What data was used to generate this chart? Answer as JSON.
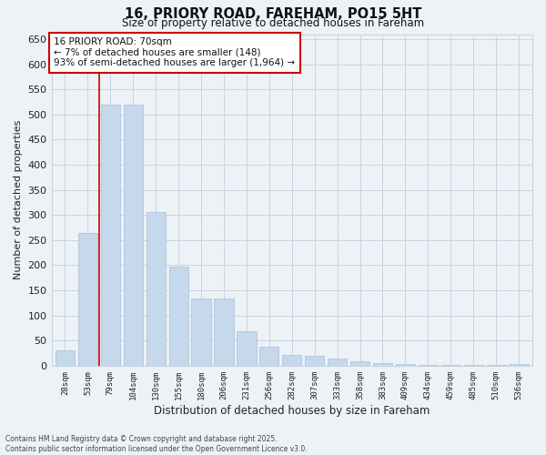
{
  "title1": "16, PRIORY ROAD, FAREHAM, PO15 5HT",
  "title2": "Size of property relative to detached houses in Fareham",
  "xlabel": "Distribution of detached houses by size in Fareham",
  "ylabel": "Number of detached properties",
  "categories": [
    "28sqm",
    "53sqm",
    "79sqm",
    "104sqm",
    "130sqm",
    "155sqm",
    "180sqm",
    "206sqm",
    "231sqm",
    "256sqm",
    "282sqm",
    "307sqm",
    "333sqm",
    "358sqm",
    "383sqm",
    "409sqm",
    "434sqm",
    "459sqm",
    "485sqm",
    "510sqm",
    "536sqm"
  ],
  "values": [
    30,
    265,
    520,
    520,
    305,
    198,
    133,
    133,
    68,
    38,
    22,
    20,
    15,
    8,
    5,
    4,
    1,
    1,
    1,
    1,
    3
  ],
  "bar_color": "#c5d8ec",
  "bar_edgecolor": "#a8c0d8",
  "grid_color": "#c8d4e0",
  "background_color": "#edf2f7",
  "redline_x": 1.5,
  "annotation_text": "16 PRIORY ROAD: 70sqm\n← 7% of detached houses are smaller (148)\n93% of semi-detached houses are larger (1,964) →",
  "annotation_box_color": "#ffffff",
  "annotation_box_edgecolor": "#cc0000",
  "redline_color": "#cc0000",
  "ylim": [
    0,
    660
  ],
  "yticks": [
    0,
    50,
    100,
    150,
    200,
    250,
    300,
    350,
    400,
    450,
    500,
    550,
    600,
    650
  ],
  "footer1": "Contains HM Land Registry data © Crown copyright and database right 2025.",
  "footer2": "Contains public sector information licensed under the Open Government Licence v3.0."
}
